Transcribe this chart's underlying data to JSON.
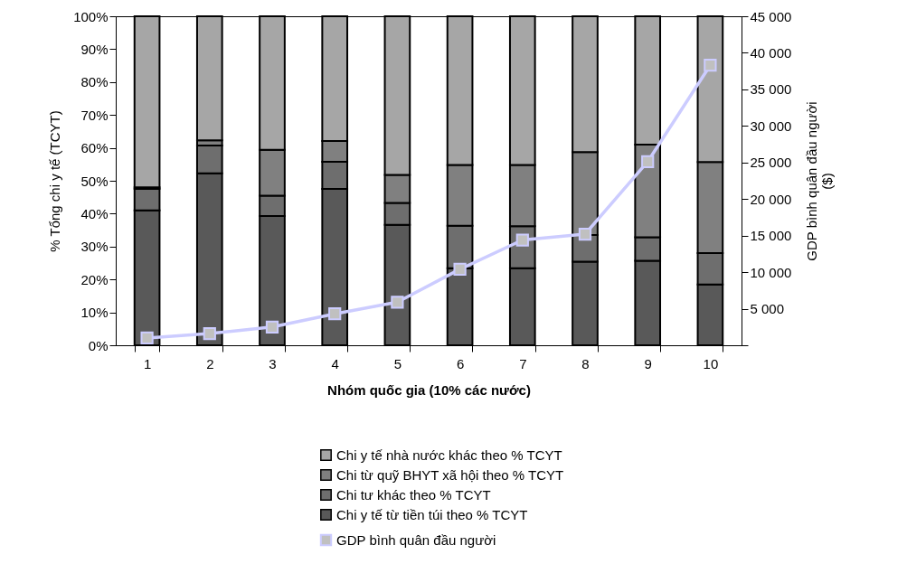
{
  "chart_data": {
    "type": "bar",
    "stacked": true,
    "xlabel": "Nhóm quốc gia (10% các nước)",
    "ylabel": "% Tổng chi y tế (TCYT)",
    "y2label": "GDP bình quân đầu người ($)",
    "categories": [
      "1",
      "2",
      "3",
      "4",
      "5",
      "6",
      "7",
      "8",
      "9",
      "10"
    ],
    "series": [
      {
        "name": "Chi y tế từ tiền túi theo % TCYT",
        "color": "#595959",
        "values": [
          41,
          52.3,
          39.3,
          47.5,
          36.6,
          23.4,
          23.4,
          25.4,
          25.7,
          18.5
        ]
      },
      {
        "name": "Chi tư khác theo % TCYT",
        "color": "#6e6e6e",
        "values": [
          6.5,
          8.4,
          6.2,
          8.3,
          6.7,
          12.9,
          12.8,
          8.1,
          7.1,
          9.5
        ]
      },
      {
        "name": "Chi từ quỹ BHYT xã hội theo % TCYT",
        "color": "#808080",
        "values": [
          0.5,
          1.6,
          13.9,
          6.3,
          8.5,
          18.5,
          18.6,
          25.2,
          28.2,
          27.7
        ]
      },
      {
        "name": "Chi y tế nhà nước khác theo % TCYT",
        "color": "#a6a6a6",
        "values": [
          52,
          37.7,
          40.6,
          37.9,
          48.2,
          45.2,
          45.2,
          41.3,
          39,
          44.3
        ]
      },
      {
        "name": "GDP bình quân đầu người",
        "type": "line",
        "axis": "y2",
        "color": "#ccccff",
        "values": [
          1000,
          1600,
          2500,
          4300,
          5900,
          10400,
          14400,
          15200,
          25100,
          38300
        ]
      }
    ],
    "ylim": [
      0,
      100
    ],
    "yticks": [
      {
        "value": 0,
        "label": "0%"
      },
      {
        "value": 10,
        "label": "10%"
      },
      {
        "value": 20,
        "label": "20%"
      },
      {
        "value": 30,
        "label": "30%"
      },
      {
        "value": 40,
        "label": "40%"
      },
      {
        "value": 50,
        "label": "50%"
      },
      {
        "value": 60,
        "label": "60%"
      },
      {
        "value": 70,
        "label": "70%"
      },
      {
        "value": 80,
        "label": "80%"
      },
      {
        "value": 90,
        "label": "90%"
      },
      {
        "value": 100,
        "label": "100%"
      }
    ],
    "y2lim": [
      0,
      45000
    ],
    "y2ticks": [
      {
        "value": 0,
        "label": null
      },
      {
        "value": 5000,
        "label": "5 000"
      },
      {
        "value": 10000,
        "label": "10 000"
      },
      {
        "value": 15000,
        "label": "15 000"
      },
      {
        "value": 20000,
        "label": "20 000"
      },
      {
        "value": 25000,
        "label": "25 000"
      },
      {
        "value": 30000,
        "label": "30 000"
      },
      {
        "value": 35000,
        "label": "35 000"
      },
      {
        "value": 40000,
        "label": "40 000"
      },
      {
        "value": 45000,
        "label": "45 000"
      }
    ],
    "marker": "square",
    "legend": "bottom",
    "grid": false
  }
}
